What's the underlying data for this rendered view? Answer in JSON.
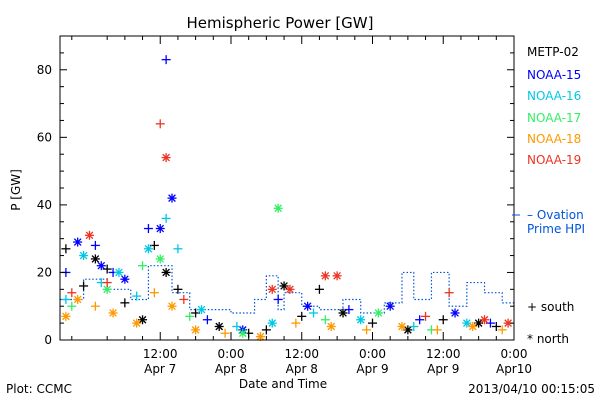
{
  "chart_data": {
    "type": "scatter",
    "title": "Hemispheric Power [GW]",
    "xlabel": "Date and Time",
    "ylabel": "P [GW]",
    "xlim": [
      "2013-04-06 19:00",
      "2013-04-10 00:00"
    ],
    "ylim": [
      0,
      90
    ],
    "y_ticks": [
      "0",
      "20",
      "40",
      "60",
      "80"
    ],
    "x_ticks": [
      {
        "time": "2013-04-07 12:00",
        "line1": "12:00",
        "line2": "Apr 7"
      },
      {
        "time": "2013-04-08 00:00",
        "line1": "0:00",
        "line2": "Apr 8"
      },
      {
        "time": "2013-04-08 12:00",
        "line1": "12:00",
        "line2": "Apr 8"
      },
      {
        "time": "2013-04-09 00:00",
        "line1": "0:00",
        "line2": "Apr 9"
      },
      {
        "time": "2013-04-09 12:00",
        "line1": "12:00",
        "line2": "Apr 9"
      },
      {
        "time": "2013-04-10 00:00",
        "line1": "0:00",
        "line2": "Apr10"
      }
    ],
    "legend_placement": "right",
    "marker_legend": {
      "south": "+ south",
      "north": "* north"
    },
    "series": [
      {
        "name": "METP-02",
        "color": "#000000",
        "points": [
          {
            "t": "2013-04-06 20:00",
            "p": 27,
            "m": "south"
          },
          {
            "t": "2013-04-06 23:00",
            "p": 16,
            "m": "south"
          },
          {
            "t": "2013-04-07 01:00",
            "p": 24,
            "m": "north"
          },
          {
            "t": "2013-04-07 03:00",
            "p": 21,
            "m": "south"
          },
          {
            "t": "2013-04-07 06:00",
            "p": 11,
            "m": "south"
          },
          {
            "t": "2013-04-07 09:00",
            "p": 6,
            "m": "north"
          },
          {
            "t": "2013-04-07 11:00",
            "p": 28,
            "m": "south"
          },
          {
            "t": "2013-04-07 13:00",
            "p": 20,
            "m": "north"
          },
          {
            "t": "2013-04-07 15:00",
            "p": 15,
            "m": "south"
          },
          {
            "t": "2013-04-07 18:00",
            "p": 8,
            "m": "south"
          },
          {
            "t": "2013-04-07 22:00",
            "p": 4,
            "m": "north"
          },
          {
            "t": "2013-04-08 03:00",
            "p": 2,
            "m": "south"
          },
          {
            "t": "2013-04-08 06:00",
            "p": 3,
            "m": "south"
          },
          {
            "t": "2013-04-08 09:00",
            "p": 16,
            "m": "north"
          },
          {
            "t": "2013-04-08 12:00",
            "p": 7,
            "m": "south"
          },
          {
            "t": "2013-04-08 15:00",
            "p": 15,
            "m": "south"
          },
          {
            "t": "2013-04-08 19:00",
            "p": 8,
            "m": "north"
          },
          {
            "t": "2013-04-09 00:00",
            "p": 5,
            "m": "south"
          },
          {
            "t": "2013-04-09 06:00",
            "p": 3,
            "m": "north"
          },
          {
            "t": "2013-04-09 12:00",
            "p": 6,
            "m": "south"
          },
          {
            "t": "2013-04-09 18:00",
            "p": 5,
            "m": "north"
          },
          {
            "t": "2013-04-09 21:00",
            "p": 4,
            "m": "south"
          }
        ]
      },
      {
        "name": "NOAA-15",
        "color": "#0000ff",
        "points": [
          {
            "t": "2013-04-06 20:00",
            "p": 20,
            "m": "south"
          },
          {
            "t": "2013-04-06 22:00",
            "p": 29,
            "m": "north"
          },
          {
            "t": "2013-04-07 01:00",
            "p": 28,
            "m": "south"
          },
          {
            "t": "2013-04-07 02:00",
            "p": 22,
            "m": "north"
          },
          {
            "t": "2013-04-07 04:00",
            "p": 20,
            "m": "south"
          },
          {
            "t": "2013-04-07 06:00",
            "p": 18,
            "m": "north"
          },
          {
            "t": "2013-04-07 10:00",
            "p": 33,
            "m": "south"
          },
          {
            "t": "2013-04-07 12:00",
            "p": 33,
            "m": "north"
          },
          {
            "t": "2013-04-07 13:00",
            "p": 83,
            "m": "south"
          },
          {
            "t": "2013-04-07 14:00",
            "p": 42,
            "m": "north"
          },
          {
            "t": "2013-04-07 20:00",
            "p": 6,
            "m": "south"
          },
          {
            "t": "2013-04-08 02:00",
            "p": 3,
            "m": "north"
          },
          {
            "t": "2013-04-08 08:00",
            "p": 12,
            "m": "south"
          },
          {
            "t": "2013-04-08 13:00",
            "p": 10,
            "m": "north"
          },
          {
            "t": "2013-04-08 20:00",
            "p": 9,
            "m": "south"
          },
          {
            "t": "2013-04-09 03:00",
            "p": 10,
            "m": "north"
          },
          {
            "t": "2013-04-09 08:00",
            "p": 6,
            "m": "south"
          },
          {
            "t": "2013-04-09 14:00",
            "p": 8,
            "m": "north"
          },
          {
            "t": "2013-04-09 20:00",
            "p": 5,
            "m": "south"
          }
        ]
      },
      {
        "name": "NOAA-16",
        "color": "#00c8e6",
        "points": [
          {
            "t": "2013-04-06 20:00",
            "p": 12,
            "m": "south"
          },
          {
            "t": "2013-04-06 23:00",
            "p": 25,
            "m": "north"
          },
          {
            "t": "2013-04-07 02:00",
            "p": 17,
            "m": "south"
          },
          {
            "t": "2013-04-07 05:00",
            "p": 20,
            "m": "north"
          },
          {
            "t": "2013-04-07 08:00",
            "p": 13,
            "m": "south"
          },
          {
            "t": "2013-04-07 10:00",
            "p": 27,
            "m": "north"
          },
          {
            "t": "2013-04-07 13:00",
            "p": 36,
            "m": "south"
          },
          {
            "t": "2013-04-07 15:00",
            "p": 27,
            "m": "south"
          },
          {
            "t": "2013-04-07 19:00",
            "p": 9,
            "m": "north"
          },
          {
            "t": "2013-04-08 01:00",
            "p": 4,
            "m": "south"
          },
          {
            "t": "2013-04-08 07:00",
            "p": 5,
            "m": "north"
          },
          {
            "t": "2013-04-08 14:00",
            "p": 8,
            "m": "south"
          },
          {
            "t": "2013-04-08 22:00",
            "p": 6,
            "m": "north"
          },
          {
            "t": "2013-04-09 07:00",
            "p": 4,
            "m": "south"
          },
          {
            "t": "2013-04-09 16:00",
            "p": 5,
            "m": "north"
          }
        ]
      },
      {
        "name": "NOAA-17",
        "color": "#33ee66",
        "points": [
          {
            "t": "2013-04-06 21:00",
            "p": 10,
            "m": "south"
          },
          {
            "t": "2013-04-07 03:00",
            "p": 15,
            "m": "north"
          },
          {
            "t": "2013-04-07 09:00",
            "p": 22,
            "m": "south"
          },
          {
            "t": "2013-04-07 12:00",
            "p": 24,
            "m": "north"
          },
          {
            "t": "2013-04-07 17:00",
            "p": 7,
            "m": "south"
          },
          {
            "t": "2013-04-08 02:00",
            "p": 2,
            "m": "north"
          },
          {
            "t": "2013-04-08 08:00",
            "p": 39,
            "m": "north"
          },
          {
            "t": "2013-04-08 16:00",
            "p": 6,
            "m": "south"
          },
          {
            "t": "2013-04-09 01:00",
            "p": 8,
            "m": "north"
          },
          {
            "t": "2013-04-09 10:00",
            "p": 3,
            "m": "south"
          }
        ]
      },
      {
        "name": "NOAA-18",
        "color": "#ff9900",
        "points": [
          {
            "t": "2013-04-06 20:00",
            "p": 7,
            "m": "north"
          },
          {
            "t": "2013-04-06 22:00",
            "p": 12,
            "m": "north"
          },
          {
            "t": "2013-04-07 01:00",
            "p": 10,
            "m": "south"
          },
          {
            "t": "2013-04-07 04:00",
            "p": 8,
            "m": "north"
          },
          {
            "t": "2013-04-07 08:00",
            "p": 5,
            "m": "north"
          },
          {
            "t": "2013-04-07 11:00",
            "p": 14,
            "m": "south"
          },
          {
            "t": "2013-04-07 14:00",
            "p": 10,
            "m": "north"
          },
          {
            "t": "2013-04-07 18:00",
            "p": 3,
            "m": "north"
          },
          {
            "t": "2013-04-07 23:00",
            "p": 2,
            "m": "south"
          },
          {
            "t": "2013-04-08 05:00",
            "p": 1,
            "m": "north"
          },
          {
            "t": "2013-04-08 11:00",
            "p": 5,
            "m": "south"
          },
          {
            "t": "2013-04-08 17:00",
            "p": 4,
            "m": "north"
          },
          {
            "t": "2013-04-08 23:00",
            "p": 3,
            "m": "south"
          },
          {
            "t": "2013-04-09 05:00",
            "p": 4,
            "m": "north"
          },
          {
            "t": "2013-04-09 11:00",
            "p": 3,
            "m": "south"
          },
          {
            "t": "2013-04-09 17:00",
            "p": 4,
            "m": "north"
          },
          {
            "t": "2013-04-09 22:00",
            "p": 3,
            "m": "south"
          }
        ]
      },
      {
        "name": "NOAA-19",
        "color": "#ee3322",
        "points": [
          {
            "t": "2013-04-06 21:00",
            "p": 14,
            "m": "south"
          },
          {
            "t": "2013-04-07 00:00",
            "p": 31,
            "m": "north"
          },
          {
            "t": "2013-04-07 03:00",
            "p": 17,
            "m": "south"
          },
          {
            "t": "2013-04-07 12:00",
            "p": 64,
            "m": "south"
          },
          {
            "t": "2013-04-07 13:00",
            "p": 54,
            "m": "north"
          },
          {
            "t": "2013-04-07 16:00",
            "p": 12,
            "m": "south"
          },
          {
            "t": "2013-04-08 07:00",
            "p": 15,
            "m": "north"
          },
          {
            "t": "2013-04-08 10:00",
            "p": 15,
            "m": "north"
          },
          {
            "t": "2013-04-08 16:00",
            "p": 19,
            "m": "north"
          },
          {
            "t": "2013-04-08 18:00",
            "p": 19,
            "m": "north"
          },
          {
            "t": "2013-04-09 09:00",
            "p": 7,
            "m": "south"
          },
          {
            "t": "2013-04-09 13:00",
            "p": 14,
            "m": "south"
          },
          {
            "t": "2013-04-09 19:00",
            "p": 6,
            "m": "north"
          },
          {
            "t": "2013-04-09 23:00",
            "p": 5,
            "m": "north"
          }
        ]
      }
    ],
    "ovation_series": {
      "name": "Ovation Prime HPI",
      "color": "#0055dd",
      "style": "dotted-step",
      "points": [
        {
          "t": "2013-04-06 19:00",
          "p": 12
        },
        {
          "t": "2013-04-06 23:00",
          "p": 18
        },
        {
          "t": "2013-04-07 03:00",
          "p": 15
        },
        {
          "t": "2013-04-07 07:00",
          "p": 12
        },
        {
          "t": "2013-04-07 10:00",
          "p": 22
        },
        {
          "t": "2013-04-07 14:00",
          "p": 14
        },
        {
          "t": "2013-04-07 17:00",
          "p": 9
        },
        {
          "t": "2013-04-08 00:00",
          "p": 8
        },
        {
          "t": "2013-04-08 04:00",
          "p": 12
        },
        {
          "t": "2013-04-08 06:00",
          "p": 19
        },
        {
          "t": "2013-04-08 08:00",
          "p": 9
        },
        {
          "t": "2013-04-08 09:00",
          "p": 14
        },
        {
          "t": "2013-04-08 12:00",
          "p": 10
        },
        {
          "t": "2013-04-08 15:00",
          "p": 9
        },
        {
          "t": "2013-04-08 19:00",
          "p": 12
        },
        {
          "t": "2013-04-08 22:00",
          "p": 8
        },
        {
          "t": "2013-04-09 02:00",
          "p": 11
        },
        {
          "t": "2013-04-09 05:00",
          "p": 20
        },
        {
          "t": "2013-04-09 07:00",
          "p": 12
        },
        {
          "t": "2013-04-09 10:00",
          "p": 20
        },
        {
          "t": "2013-04-09 13:00",
          "p": 10
        },
        {
          "t": "2013-04-09 16:00",
          "p": 17
        },
        {
          "t": "2013-04-09 19:00",
          "p": 14
        },
        {
          "t": "2013-04-09 22:00",
          "p": 11
        },
        {
          "t": "2013-04-10 00:00",
          "p": 9
        }
      ]
    }
  },
  "legend_lines": {
    "ovation_line1": "– Ovation",
    "ovation_line2": "Prime HPI"
  },
  "footer": {
    "plot_credit": "Plot: CCMC",
    "timestamp": "2013/04/10 00:15:05"
  }
}
